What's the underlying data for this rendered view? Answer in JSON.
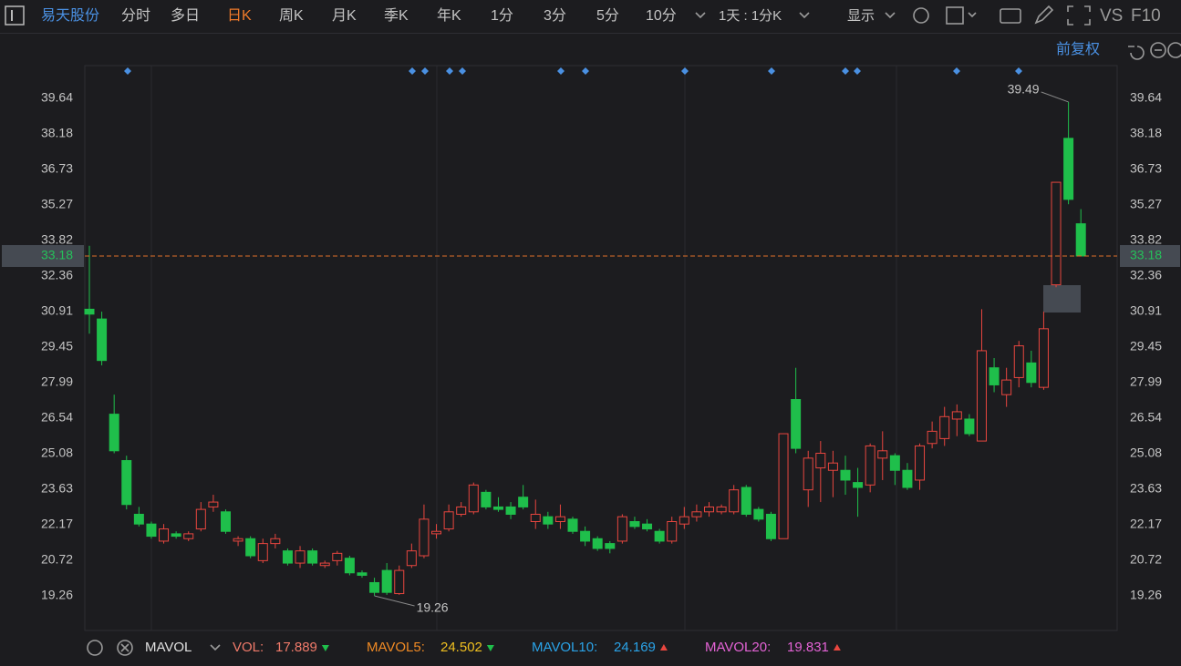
{
  "toolbar": {
    "stock_name": "易天股份",
    "periods": [
      "分时",
      "多日",
      "日K",
      "周K",
      "月K",
      "季K",
      "年K",
      "1分",
      "3分",
      "5分",
      "10分"
    ],
    "interval": "1天 : 1分K",
    "display": "显示",
    "compare": "VS",
    "f10": "F10"
  },
  "adjust": "前复权",
  "chart_data": {
    "type": "candlestick",
    "up_color": "#e8463f",
    "down_color": "#1fbf4b",
    "open": [
      31.0,
      30.6,
      26.7,
      24.8,
      22.6,
      22.2,
      21.5,
      21.8,
      21.6,
      22.0,
      22.9,
      22.7,
      21.5,
      21.6,
      20.7,
      21.4,
      21.1,
      20.6,
      21.1,
      20.5,
      20.7,
      20.8,
      20.2,
      19.8,
      20.3,
      19.35,
      20.5,
      20.9,
      21.8,
      22.0,
      22.6,
      22.7,
      23.5,
      22.9,
      22.9,
      23.3,
      22.3,
      22.5,
      22.3,
      22.4,
      21.9,
      21.6,
      21.4,
      21.5,
      22.3,
      22.2,
      21.9,
      21.5,
      22.2,
      22.5,
      22.7,
      22.7,
      22.7,
      23.7,
      22.8,
      22.6,
      21.6,
      27.3,
      23.6,
      24.5,
      24.4,
      24.4,
      23.9,
      23.8,
      24.9,
      25.0,
      24.4,
      24.0,
      25.5,
      25.7,
      26.5,
      26.5,
      25.6,
      28.6,
      27.5,
      28.2,
      28.8,
      27.8,
      32.0,
      38.0,
      34.5
    ],
    "high": [
      33.6,
      30.9,
      27.5,
      25.0,
      22.9,
      22.3,
      22.2,
      21.9,
      21.9,
      23.1,
      23.4,
      22.8,
      21.7,
      21.7,
      21.6,
      21.8,
      21.2,
      21.3,
      21.2,
      20.7,
      21.1,
      20.9,
      20.3,
      20.0,
      20.6,
      20.5,
      21.4,
      23.0,
      22.2,
      23.0,
      23.1,
      23.9,
      23.6,
      23.3,
      23.1,
      23.8,
      23.2,
      22.7,
      23.0,
      22.5,
      22.1,
      21.7,
      21.5,
      22.6,
      22.5,
      22.4,
      22.0,
      22.5,
      22.9,
      23.0,
      23.1,
      23.0,
      23.8,
      23.8,
      22.9,
      22.7,
      25.9,
      28.6,
      25.2,
      25.6,
      25.2,
      25.0,
      24.5,
      25.5,
      26.0,
      25.1,
      24.7,
      25.5,
      26.4,
      27.0,
      27.1,
      26.7,
      31.0,
      29.0,
      28.6,
      29.7,
      29.3,
      30.9,
      36.2,
      39.49,
      35.1
    ],
    "low": [
      30.0,
      28.7,
      25.1,
      22.8,
      22.1,
      21.6,
      21.4,
      21.6,
      21.5,
      21.9,
      22.7,
      21.8,
      21.3,
      20.8,
      20.6,
      21.2,
      20.5,
      20.4,
      20.5,
      20.4,
      20.5,
      20.1,
      20.0,
      19.26,
      19.3,
      19.3,
      20.4,
      20.8,
      21.6,
      21.9,
      22.5,
      22.6,
      22.8,
      22.7,
      22.4,
      22.8,
      22.0,
      22.0,
      22.0,
      21.8,
      21.3,
      21.1,
      21.0,
      21.4,
      22.0,
      21.9,
      21.4,
      21.4,
      22.0,
      22.3,
      22.5,
      22.6,
      22.6,
      22.5,
      22.3,
      21.5,
      21.6,
      25.1,
      22.9,
      23.1,
      23.3,
      23.4,
      22.5,
      23.5,
      24.0,
      23.8,
      23.6,
      23.6,
      25.3,
      25.4,
      25.8,
      25.8,
      25.6,
      27.6,
      27.0,
      27.8,
      27.8,
      27.7,
      31.9,
      35.3,
      33.18
    ],
    "close": [
      30.8,
      28.9,
      25.2,
      23.0,
      22.2,
      21.7,
      22.0,
      21.7,
      21.8,
      22.8,
      23.1,
      21.9,
      21.6,
      20.9,
      21.4,
      21.6,
      20.6,
      21.1,
      20.6,
      20.6,
      21.0,
      20.2,
      20.1,
      19.4,
      19.4,
      20.3,
      21.1,
      22.4,
      21.9,
      22.7,
      22.9,
      23.8,
      22.9,
      22.8,
      22.6,
      22.9,
      22.6,
      22.2,
      22.5,
      21.9,
      21.5,
      21.2,
      21.2,
      22.5,
      22.1,
      22.0,
      21.5,
      22.3,
      22.5,
      22.7,
      22.9,
      22.9,
      23.6,
      22.6,
      22.4,
      21.6,
      25.9,
      25.3,
      24.9,
      25.1,
      24.7,
      24.0,
      23.7,
      25.4,
      25.2,
      24.4,
      23.7,
      25.4,
      26.0,
      26.6,
      26.8,
      25.9,
      29.3,
      27.9,
      28.1,
      29.5,
      28.0,
      30.2,
      36.2,
      35.5,
      33.18
    ],
    "ylim": [
      17.84,
      40.98
    ],
    "yticks": [
      39.64,
      38.18,
      36.73,
      35.27,
      33.82,
      32.36,
      30.91,
      29.45,
      27.99,
      26.54,
      25.08,
      23.63,
      22.17,
      20.72,
      19.26
    ],
    "current_price": 33.18,
    "high_annotation": 39.49,
    "low_annotation": 19.26
  },
  "indicator": {
    "name": "MAVOL",
    "items": [
      {
        "label": "VOL:",
        "value": 17.889,
        "label_color": "#f07a6a",
        "value_color": "#f07a6a",
        "trend": "down"
      },
      {
        "label": "MAVOL5:",
        "value": 24.502,
        "label_color": "#f08a24",
        "value_color": "#f0c020",
        "trend": "down"
      },
      {
        "label": "MAVOL10:",
        "value": 24.169,
        "label_color": "#2aa3e8",
        "value_color": "#2aa3e8",
        "trend": "up"
      },
      {
        "label": "MAVOL20:",
        "value": 19.831,
        "label_color": "#e463d6",
        "value_color": "#e463d6",
        "trend": "up"
      }
    ]
  }
}
